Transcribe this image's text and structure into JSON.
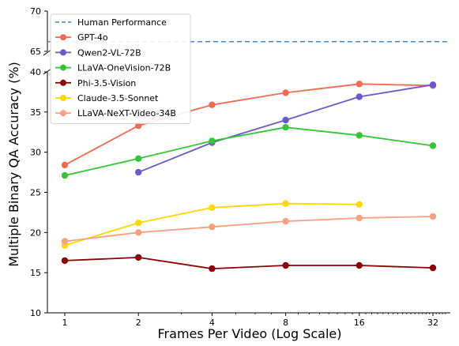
{
  "chart_data": {
    "type": "line",
    "xlabel": "Frames Per Video (Log Scale)",
    "ylabel": "Multiple Binary QA Accuracy (%)",
    "x_scale": "log2",
    "x_ticks": [
      1,
      2,
      4,
      8,
      16,
      32
    ],
    "x_tick_labels": [
      "1",
      "2",
      "4",
      "8",
      "16",
      "32"
    ],
    "broken_y_axis": true,
    "y_lower": {
      "ylim": [
        10,
        40
      ],
      "ticks": [
        10,
        15,
        20,
        25,
        30,
        35,
        40
      ]
    },
    "y_upper": {
      "ylim": [
        65,
        70
      ],
      "ticks": [
        65,
        70
      ]
    },
    "legend_position": "top-left",
    "reference_line": {
      "name": "Human Performance",
      "value": 66.2,
      "color": "#4a86c8",
      "style": "dashed"
    },
    "series": [
      {
        "name": "GPT-4o",
        "color": "#f26b4f",
        "x": [
          1,
          2,
          4,
          8,
          16,
          32
        ],
        "values": [
          28.4,
          33.3,
          35.9,
          37.4,
          38.5,
          38.3
        ]
      },
      {
        "name": "Qwen2-VL-72B",
        "color": "#6b5acd",
        "x": [
          2,
          4,
          8,
          16,
          32
        ],
        "values": [
          27.5,
          31.2,
          34.0,
          36.9,
          38.4
        ]
      },
      {
        "name": "LLaVA-OneVision-72B",
        "color": "#35c435",
        "x": [
          1,
          2,
          4,
          8,
          16,
          32
        ],
        "values": [
          27.1,
          29.2,
          31.4,
          33.1,
          32.1,
          30.8
        ]
      },
      {
        "name": "Phi-3.5-Vision",
        "color": "#8b0000",
        "x": [
          1,
          2,
          4,
          8,
          16,
          32
        ],
        "values": [
          16.5,
          16.9,
          15.5,
          15.9,
          15.9,
          15.6
        ]
      },
      {
        "name": "Claude-3.5-Sonnet",
        "color": "#ffd700",
        "x": [
          1,
          2,
          4,
          8,
          16
        ],
        "values": [
          18.4,
          21.2,
          23.1,
          23.6,
          23.5
        ]
      },
      {
        "name": "LLaVA-NeXT-Video-34B",
        "color": "#f8a07e",
        "x": [
          1,
          2,
          4,
          8,
          16,
          32
        ],
        "values": [
          18.9,
          20.0,
          20.7,
          21.4,
          21.8,
          22.0
        ]
      }
    ]
  }
}
